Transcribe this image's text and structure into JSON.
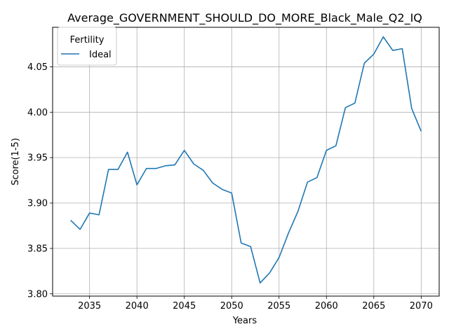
{
  "chart_data": {
    "type": "line",
    "title": "Average_GOVERNMENT_SHOULD_DO_MORE_Black_Male_Q2_IQ",
    "xlabel": "Years",
    "ylabel": "Score(1-5)",
    "xlim": [
      2031.1,
      2071.9
    ],
    "ylim": [
      3.7975,
      4.0935
    ],
    "xticks": [
      2035,
      2040,
      2045,
      2050,
      2055,
      2060,
      2065,
      2070
    ],
    "yticks": [
      3.8,
      3.85,
      3.9,
      3.95,
      4.0,
      4.05
    ],
    "ytick_labels": [
      "3.80",
      "3.85",
      "3.90",
      "3.95",
      "4.00",
      "4.05"
    ],
    "grid": true,
    "legend": {
      "title": "Fertility",
      "placement": "upper left"
    },
    "series": [
      {
        "name": "Ideal",
        "color": "#1f77b4",
        "x": [
          2033,
          2034,
          2035,
          2036,
          2037,
          2038,
          2039,
          2040,
          2041,
          2042,
          2043,
          2044,
          2045,
          2046,
          2047,
          2048,
          2049,
          2050,
          2051,
          2052,
          2053,
          2054,
          2055,
          2056,
          2057,
          2058,
          2059,
          2060,
          2061,
          2062,
          2063,
          2064,
          2065,
          2066,
          2067,
          2068,
          2069,
          2070
        ],
        "y": [
          3.881,
          3.871,
          3.889,
          3.887,
          3.937,
          3.937,
          3.956,
          3.92,
          3.938,
          3.938,
          3.941,
          3.942,
          3.958,
          3.943,
          3.936,
          3.922,
          3.915,
          3.911,
          3.856,
          3.852,
          3.812,
          3.823,
          3.84,
          3.867,
          3.891,
          3.923,
          3.928,
          3.958,
          3.963,
          4.005,
          4.01,
          4.054,
          4.064,
          4.083,
          4.068,
          4.07,
          4.004,
          3.979
        ]
      }
    ]
  }
}
